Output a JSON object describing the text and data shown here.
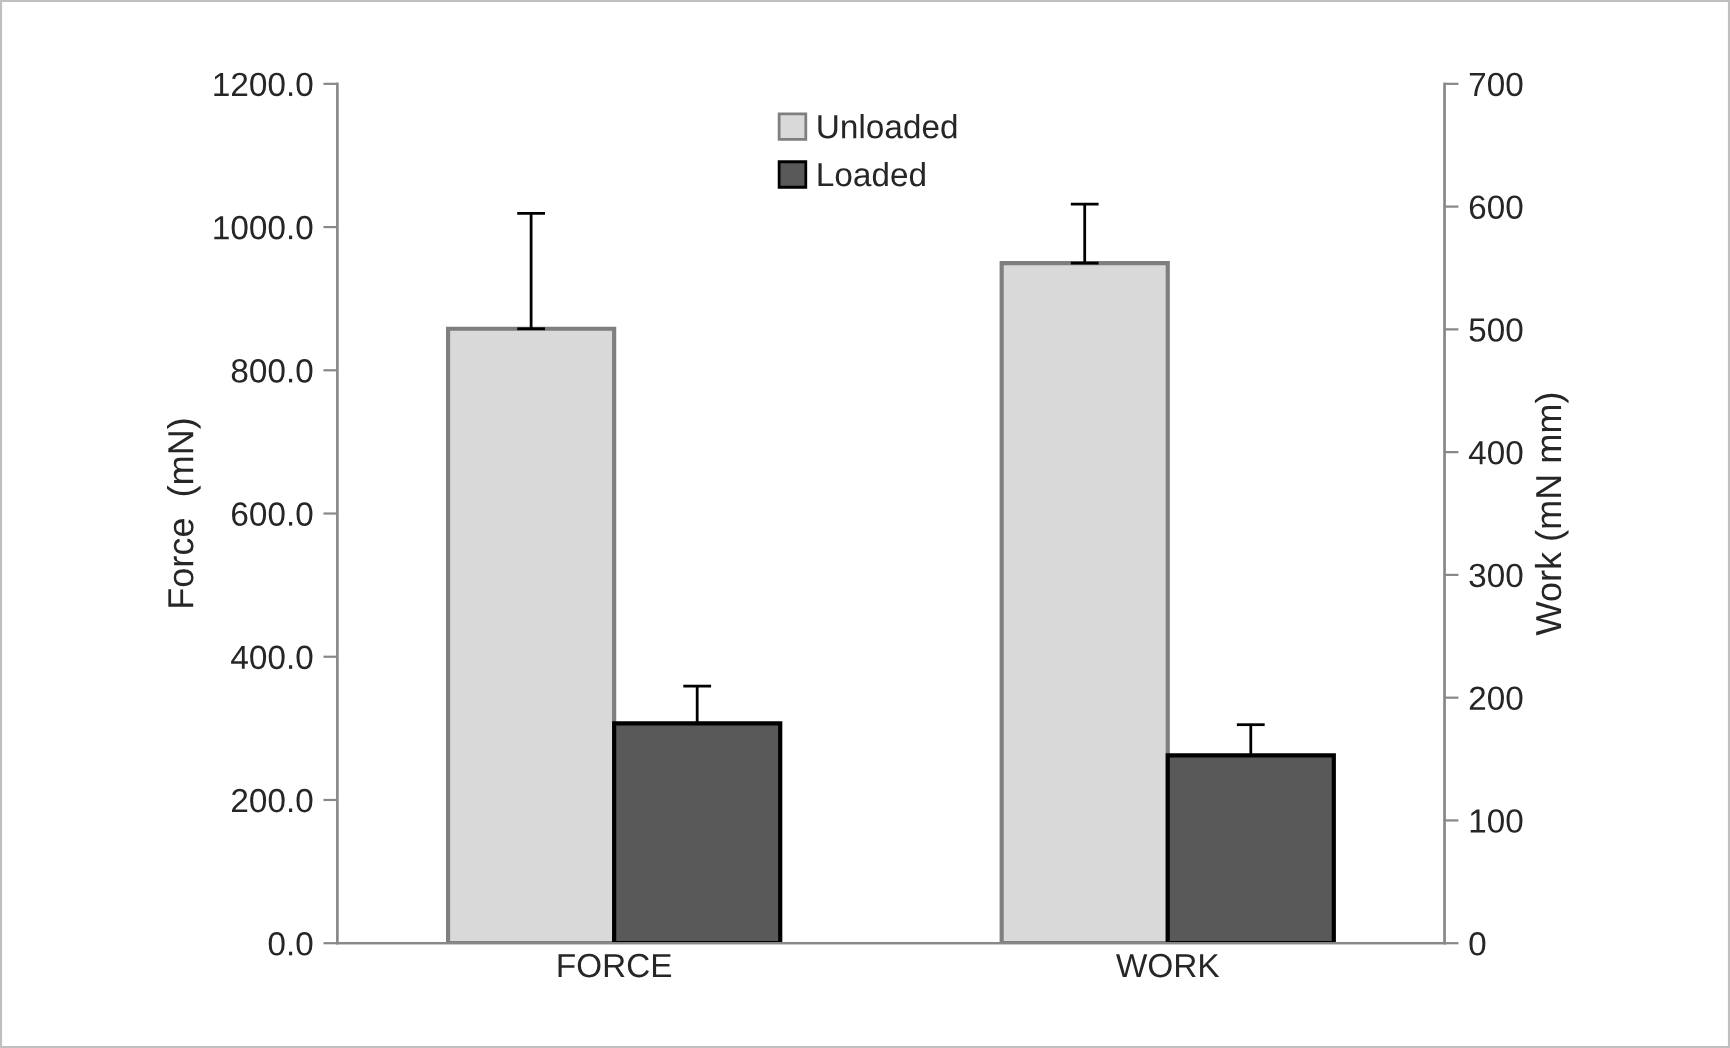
{
  "chart_data": {
    "type": "bar",
    "categories": [
      "FORCE",
      "WORK"
    ],
    "ylabel": "Force  (mN)",
    "y2label": "Work (mN mm)",
    "ylim": [
      0,
      1200
    ],
    "yticks": [
      {
        "value": 0,
        "label": "0.0"
      },
      {
        "value": 200,
        "label": "200.0"
      },
      {
        "value": 400,
        "label": "400.0"
      },
      {
        "value": 600,
        "label": "600.0"
      },
      {
        "value": 800,
        "label": "800.0"
      },
      {
        "value": 1000,
        "label": "1000.0"
      },
      {
        "value": 1200,
        "label": "1200.0"
      }
    ],
    "y2lim": [
      0,
      700
    ],
    "y2ticks": [
      0,
      100,
      200,
      300,
      400,
      500,
      600,
      700
    ],
    "series": [
      {
        "name": "Unloaded",
        "color": "#d9d9d9",
        "values": [
          858,
          null
        ],
        "errors": [
          161,
          null
        ]
      },
      {
        "name": "Loaded",
        "color": "#595959",
        "values": [
          307,
          null
        ],
        "errors": [
          52,
          null
        ]
      },
      {
        "color": "#d9d9d9",
        "axis": "y2",
        "values": [
          null,
          554
        ],
        "errors": [
          null,
          48
        ]
      },
      {
        "color": "#595959",
        "axis": "y2",
        "values": [
          null,
          153
        ],
        "errors": [
          null,
          25
        ]
      }
    ],
    "legend": "top",
    "grid": false
  }
}
